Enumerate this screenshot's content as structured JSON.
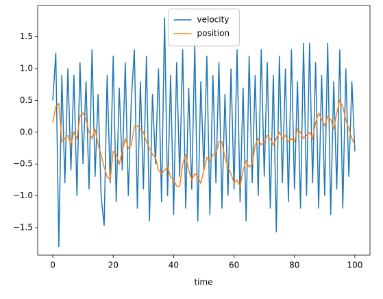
{
  "chart_data": {
    "type": "line",
    "x_label": "time",
    "x": [
      0,
      1,
      2,
      3,
      4,
      5,
      6,
      7,
      8,
      9,
      10,
      11,
      12,
      13,
      14,
      15,
      16,
      17,
      18,
      19,
      20,
      21,
      22,
      23,
      24,
      25,
      26,
      27,
      28,
      29,
      30,
      31,
      32,
      33,
      34,
      35,
      36,
      37,
      38,
      39,
      40,
      41,
      42,
      43,
      44,
      45,
      46,
      47,
      48,
      49,
      50,
      51,
      52,
      53,
      54,
      55,
      56,
      57,
      58,
      59,
      60,
      61,
      62,
      63,
      64,
      65,
      66,
      67,
      68,
      69,
      70,
      71,
      72,
      73,
      74,
      75,
      76,
      77,
      78,
      79,
      80,
      81,
      82,
      83,
      84,
      85,
      86,
      87,
      88,
      89,
      90,
      91,
      92,
      93,
      94,
      95,
      96,
      97,
      98,
      99,
      100
    ],
    "series": [
      {
        "name": "velocity",
        "color": "#1f77b4",
        "values": [
          0.5,
          1.25,
          -1.8,
          0.9,
          -0.8,
          1.0,
          -0.6,
          0.9,
          -1.0,
          1.1,
          -0.5,
          0.8,
          -0.9,
          1.3,
          -0.7,
          0.6,
          -1.0,
          -1.47,
          0.9,
          -0.8,
          1.2,
          -1.1,
          0.7,
          -0.6,
          1.1,
          -1.0,
          0.5,
          1.3,
          -1.2,
          0.8,
          -0.9,
          1.2,
          -1.4,
          0.6,
          -0.5,
          1.0,
          -1.1,
          1.8,
          -1.0,
          0.9,
          -1.3,
          1.1,
          -0.7,
          1.3,
          -1.2,
          0.7,
          -0.9,
          1.4,
          -1.4,
          0.8,
          -0.6,
          1.2,
          -1.3,
          0.9,
          -0.8,
          1.1,
          -1.2,
          0.6,
          -1.0,
          1.0,
          -0.9,
          1.3,
          -1.1,
          0.7,
          -1.4,
          1.2,
          -0.8,
          0.9,
          -1.0,
          1.3,
          -0.7,
          1.1,
          -1.2,
          0.9,
          -1.57,
          1.2,
          -0.8,
          1.0,
          -1.1,
          1.3,
          -0.9,
          0.8,
          -1.2,
          1.4,
          -1.0,
          1.4,
          -0.8,
          1.1,
          -1.2,
          0.9,
          -1.0,
          1.4,
          -1.3,
          0.8,
          -0.9,
          1.3,
          -1.2,
          1.0,
          -0.7,
          0.8,
          -0.3
        ]
      },
      {
        "name": "position",
        "color": "#ff7f0e",
        "values": [
          0.15,
          0.4,
          0.45,
          -0.15,
          -0.1,
          -0.05,
          -0.2,
          0.0,
          -0.1,
          0.25,
          0.3,
          0.2,
          0.0,
          -0.1,
          0.05,
          -0.2,
          -0.35,
          -0.55,
          -0.7,
          -0.75,
          -0.3,
          -0.35,
          -0.5,
          -0.3,
          -0.1,
          -0.25,
          -0.2,
          0.1,
          0.1,
          0.05,
          0.0,
          -0.15,
          -0.25,
          -0.35,
          -0.4,
          -0.6,
          -0.65,
          -0.6,
          -0.55,
          -0.7,
          -0.75,
          -0.85,
          -0.85,
          -0.5,
          -0.35,
          -0.6,
          -0.75,
          -0.65,
          -0.7,
          -0.8,
          -0.6,
          -0.4,
          -0.45,
          -0.35,
          -0.35,
          -0.15,
          -0.15,
          -0.4,
          -0.55,
          -0.65,
          -0.8,
          -0.75,
          -0.85,
          -0.6,
          -0.45,
          -0.55,
          -0.5,
          -0.2,
          -0.1,
          -0.2,
          -0.15,
          -0.05,
          -0.1,
          -0.2,
          -0.1,
          0.0,
          -0.1,
          -0.05,
          -0.15,
          -0.1,
          -0.15,
          0.05,
          0.0,
          -0.1,
          -0.05,
          0.0,
          -0.1,
          0.15,
          0.3,
          0.2,
          0.1,
          0.25,
          0.2,
          0.05,
          0.3,
          0.5,
          0.4,
          0.2,
          0.05,
          -0.1,
          -0.2
        ]
      }
    ],
    "xlim": [
      -5,
      105
    ],
    "xticks": [
      0,
      20,
      40,
      60,
      80,
      100
    ],
    "ylim": [
      -1.93,
      1.99
    ],
    "yticks": [
      {
        "value": -1.5,
        "label": "−1.5"
      },
      {
        "value": -1.0,
        "label": "−1.0"
      },
      {
        "value": -0.5,
        "label": "−0.5"
      },
      {
        "value": 0.0,
        "label": "0.0"
      },
      0.5,
      {
        "value": 1.0,
        "label": "1.0"
      },
      1.5
    ],
    "legend": "upper center",
    "grid": false
  }
}
